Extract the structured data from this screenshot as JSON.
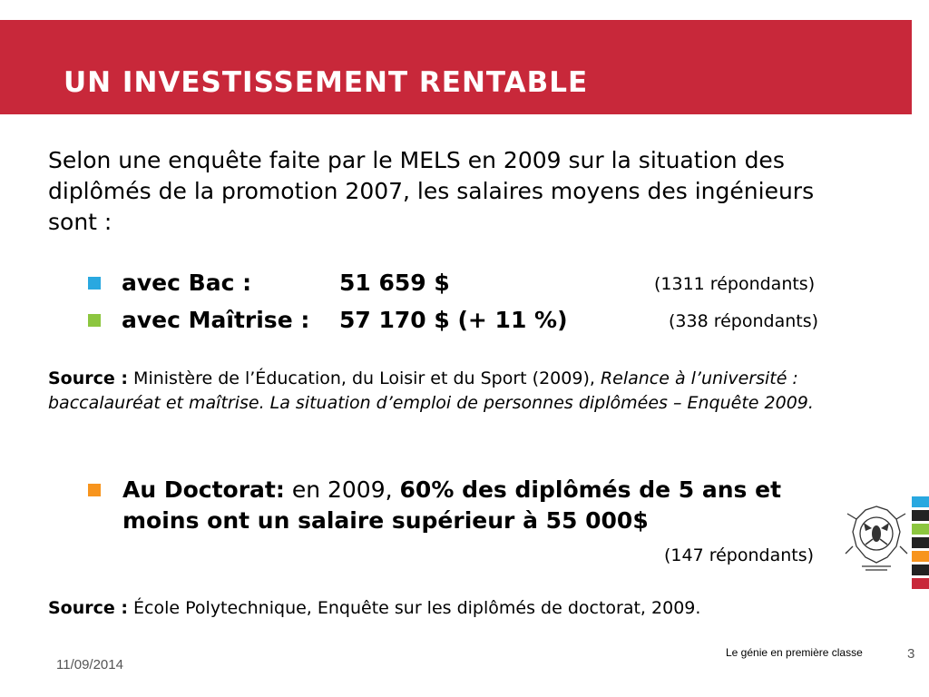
{
  "slide": {
    "title": "UN INVESTISSEMENT RENTABLE",
    "intro": "Selon une enquête faite par le MELS en 2009 sur la situation des diplômés de la promotion 2007, les salaires moyens des ingénieurs sont :",
    "bullets": [
      {
        "label": "avec Bac :",
        "value": "51 659 $",
        "respondents": "(1311 répondants)",
        "color": "#29a8e0"
      },
      {
        "label": "avec Maîtrise :",
        "value": "57 170 $ (+ 11 %)",
        "respondents": "(338 répondants)",
        "color": "#8cc63f"
      }
    ],
    "source1": {
      "label": "Source :",
      "text": "Ministère de l’Éducation, du Loisir et du Sport (2009),",
      "italic": "Relance à l’université : baccalauréat et maîtrise. La situation d’emploi de personnes diplômées – Enquête 2009."
    },
    "doctorat": {
      "label": "Au Doctorat:",
      "mid": "en 2009,",
      "bold": "60% des diplômés de 5 ans et moins ont un salaire supérieur à 55 000$",
      "respondents": "(147 répondants)",
      "color": "#f7941d"
    },
    "source2": {
      "label": "Source :",
      "text": "École Polytechnique, Enquête sur les diplômés de doctorat, 2009."
    }
  },
  "footer": {
    "date": "11/09/2014",
    "tagline": "Le génie en première classe",
    "page": "3"
  },
  "colors": {
    "title_bar": "#c8283a",
    "stripes": [
      "#29a8e0",
      "#222222",
      "#8cc63f",
      "#222222",
      "#f7941d",
      "#222222",
      "#c8283a"
    ]
  },
  "icons": {
    "logo": "polytechnique-seal-icon"
  }
}
